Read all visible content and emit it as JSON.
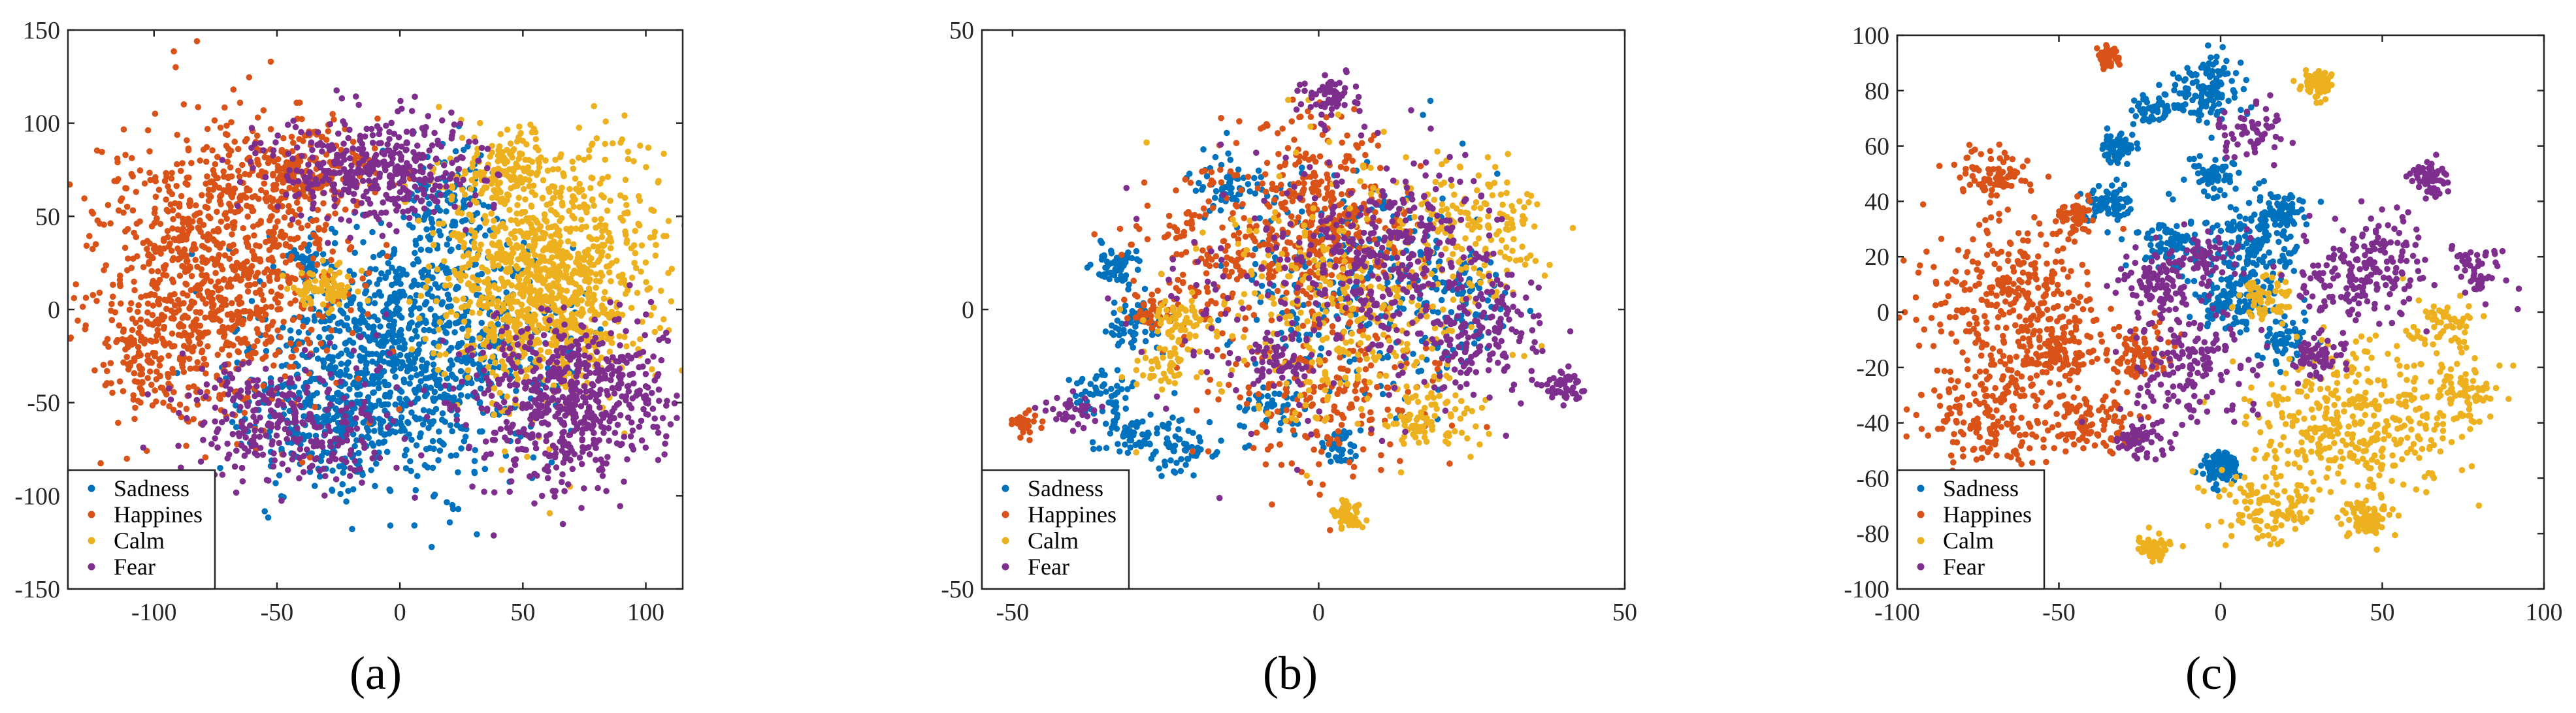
{
  "colors": {
    "Sadness": "#0072BD",
    "Happines": "#D95319",
    "Calm": "#EDB120",
    "Fear": "#7E2F8E",
    "axis": "#262626"
  },
  "chart_data": [
    {
      "type": "scatter",
      "caption": "(a)",
      "xlim": [
        -135,
        115
      ],
      "ylim": [
        -150,
        150
      ],
      "xticks": [
        -100,
        -50,
        0,
        50,
        100
      ],
      "yticks": [
        -150,
        -100,
        -50,
        0,
        50,
        100,
        150
      ],
      "xtick_labels": [
        "-100",
        "-50",
        "0",
        "50",
        "100"
      ],
      "ytick_labels": [
        "-150",
        "-100",
        "-50",
        "0",
        "50",
        "100",
        "150"
      ],
      "legend": {
        "position": "bottom-left",
        "entries": [
          "Sadness",
          "Happines",
          "Calm",
          "Fear"
        ]
      },
      "series": [
        {
          "name": "Sadness",
          "points_estimated": 1400,
          "clusters": [
            {
              "cx": 5,
              "cy": -20,
              "sx": 30,
              "sy": 32,
              "n": 1000
            },
            {
              "cx": -25,
              "cy": -60,
              "sx": 20,
              "sy": 18,
              "n": 250
            },
            {
              "cx": 20,
              "cy": 60,
              "sx": 10,
              "sy": 15,
              "n": 100
            },
            {
              "cx": -38,
              "cy": 25,
              "sx": 4,
              "sy": 4,
              "n": 40
            }
          ]
        },
        {
          "name": "Happines",
          "points_estimated": 1300,
          "clusters": [
            {
              "cx": -75,
              "cy": 20,
              "sx": 25,
              "sy": 38,
              "n": 1000
            },
            {
              "cx": -40,
              "cy": 75,
              "sx": 15,
              "sy": 12,
              "n": 200
            },
            {
              "cx": -100,
              "cy": -30,
              "sx": 10,
              "sy": 15,
              "n": 100
            }
          ]
        },
        {
          "name": "Calm",
          "points_estimated": 1300,
          "clusters": [
            {
              "cx": 60,
              "cy": 15,
              "sx": 22,
              "sy": 32,
              "n": 1100
            },
            {
              "cx": -30,
              "cy": 10,
              "sx": 8,
              "sy": 6,
              "n": 80
            },
            {
              "cx": 40,
              "cy": 75,
              "sx": 10,
              "sy": 10,
              "n": 120
            }
          ]
        },
        {
          "name": "Fear",
          "points_estimated": 1300,
          "clusters": [
            {
              "cx": -10,
              "cy": 75,
              "sx": 20,
              "sy": 15,
              "n": 400
            },
            {
              "cx": 70,
              "cy": -50,
              "sx": 22,
              "sy": 22,
              "n": 600
            },
            {
              "cx": -45,
              "cy": -60,
              "sx": 22,
              "sy": 18,
              "n": 300
            }
          ]
        }
      ]
    },
    {
      "type": "scatter",
      "caption": "(b)",
      "xlim": [
        -55,
        50
      ],
      "ylim": [
        -50,
        50
      ],
      "xticks": [
        -50,
        0,
        50
      ],
      "yticks": [
        -50,
        0,
        50
      ],
      "xtick_labels": [
        "-50",
        "0",
        "50"
      ],
      "ytick_labels": [
        "-50",
        "0",
        "50"
      ],
      "legend": {
        "position": "bottom-left",
        "entries": [
          "Sadness",
          "Happines",
          "Calm",
          "Fear"
        ]
      },
      "series": [
        {
          "name": "Sadness",
          "points_estimated": 900,
          "clusters": [
            {
              "cx": -33,
              "cy": 8,
              "sx": 2,
              "sy": 2,
              "n": 60
            },
            {
              "cx": -30,
              "cy": -3,
              "sx": 2.5,
              "sy": 2.5,
              "n": 60
            },
            {
              "cx": -35,
              "cy": -15,
              "sx": 2.5,
              "sy": 2,
              "n": 50
            },
            {
              "cx": -30,
              "cy": -22,
              "sx": 3,
              "sy": 2.5,
              "n": 70
            },
            {
              "cx": -22,
              "cy": -25,
              "sx": 2.5,
              "sy": 2.5,
              "n": 50
            },
            {
              "cx": -15,
              "cy": 22,
              "sx": 3,
              "sy": 3,
              "n": 60
            },
            {
              "cx": -8,
              "cy": -18,
              "sx": 2.5,
              "sy": 2.5,
              "n": 40
            },
            {
              "cx": 3,
              "cy": -25,
              "sx": 1.5,
              "sy": 1.5,
              "n": 40
            },
            {
              "cx": 5,
              "cy": 5,
              "sx": 10,
              "sy": 10,
              "n": 250
            },
            {
              "cx": 22,
              "cy": 0,
              "sx": 5,
              "sy": 5,
              "n": 100
            }
          ]
        },
        {
          "name": "Happines",
          "points_estimated": 900,
          "clusters": [
            {
              "cx": 0,
              "cy": 15,
              "sx": 7,
              "sy": 9,
              "n": 400
            },
            {
              "cx": -48,
              "cy": -20,
              "sx": 1,
              "sy": 1,
              "n": 30
            },
            {
              "cx": -27,
              "cy": 0,
              "sx": 2,
              "sy": 2,
              "n": 40
            },
            {
              "cx": -18,
              "cy": 10,
              "sx": 6,
              "sy": 8,
              "n": 150
            },
            {
              "cx": 0,
              "cy": -15,
              "sx": 10,
              "sy": 8,
              "n": 200
            }
          ]
        },
        {
          "name": "Calm",
          "points_estimated": 900,
          "clusters": [
            {
              "cx": 5,
              "cy": -37,
              "sx": 1.5,
              "sy": 1.2,
              "n": 50
            },
            {
              "cx": -22,
              "cy": -2,
              "sx": 3,
              "sy": 2.5,
              "n": 60
            },
            {
              "cx": -25,
              "cy": -10,
              "sx": 2.5,
              "sy": 2,
              "n": 40
            },
            {
              "cx": 18,
              "cy": -20,
              "sx": 4,
              "sy": 3,
              "n": 80
            },
            {
              "cx": 25,
              "cy": 15,
              "sx": 6,
              "sy": 6,
              "n": 150
            },
            {
              "cx": 5,
              "cy": 0,
              "sx": 12,
              "sy": 12,
              "n": 400
            }
          ]
        },
        {
          "name": "Fear",
          "points_estimated": 900,
          "clusters": [
            {
              "cx": 2,
              "cy": 38,
              "sx": 2.5,
              "sy": 2,
              "n": 60
            },
            {
              "cx": 40,
              "cy": -14,
              "sx": 1.5,
              "sy": 1.5,
              "n": 50
            },
            {
              "cx": 27,
              "cy": -5,
              "sx": 5,
              "sy": 6,
              "n": 150
            },
            {
              "cx": 12,
              "cy": 10,
              "sx": 8,
              "sy": 8,
              "n": 250
            },
            {
              "cx": -7,
              "cy": -10,
              "sx": 2,
              "sy": 2,
              "n": 40
            },
            {
              "cx": -40,
              "cy": -18,
              "sx": 2,
              "sy": 2,
              "n": 30
            },
            {
              "cx": 0,
              "cy": 0,
              "sx": 15,
              "sy": 12,
              "n": 200
            }
          ]
        }
      ]
    },
    {
      "type": "scatter",
      "caption": "(c)",
      "xlim": [
        -100,
        100
      ],
      "ylim": [
        -100,
        100
      ],
      "xticks": [
        -100,
        -50,
        0,
        50,
        100
      ],
      "yticks": [
        -100,
        -80,
        -60,
        -40,
        -20,
        0,
        20,
        40,
        60,
        80,
        100
      ],
      "xtick_labels": [
        "-100",
        "-50",
        "0",
        "50",
        "100"
      ],
      "ytick_labels": [
        "-100",
        "-80",
        "-60",
        "-40",
        "-20",
        "0",
        "20",
        "40",
        "60",
        "80",
        "100"
      ],
      "legend": {
        "position": "bottom-left",
        "entries": [
          "Sadness",
          "Happines",
          "Calm",
          "Fear"
        ]
      },
      "series": [
        {
          "name": "Sadness",
          "points_estimated": 1100,
          "clusters": [
            {
              "cx": -5,
              "cy": 80,
              "sx": 5,
              "sy": 6,
              "n": 120
            },
            {
              "cx": -20,
              "cy": 73,
              "sx": 4,
              "sy": 3,
              "n": 60
            },
            {
              "cx": -32,
              "cy": 60,
              "sx": 3,
              "sy": 3,
              "n": 60
            },
            {
              "cx": -35,
              "cy": 38,
              "sx": 4,
              "sy": 4,
              "n": 80
            },
            {
              "cx": -3,
              "cy": 50,
              "sx": 4,
              "sy": 4,
              "n": 60
            },
            {
              "cx": 10,
              "cy": 25,
              "sx": 8,
              "sy": 10,
              "n": 200
            },
            {
              "cx": 3,
              "cy": 3,
              "sx": 6,
              "sy": 5,
              "n": 100
            },
            {
              "cx": -15,
              "cy": 25,
              "sx": 6,
              "sy": 6,
              "n": 80
            },
            {
              "cx": 20,
              "cy": -10,
              "sx": 4,
              "sy": 4,
              "n": 60
            },
            {
              "cx": 0,
              "cy": -56,
              "sx": 3,
              "sy": 3,
              "n": 100
            },
            {
              "cx": 20,
              "cy": 35,
              "sx": 3,
              "sy": 3,
              "n": 50
            }
          ]
        },
        {
          "name": "Happines",
          "points_estimated": 1100,
          "clusters": [
            {
              "cx": -35,
              "cy": 92,
              "sx": 2,
              "sy": 2,
              "n": 50
            },
            {
              "cx": -70,
              "cy": 50,
              "sx": 5,
              "sy": 5,
              "n": 80
            },
            {
              "cx": -45,
              "cy": 35,
              "sx": 3,
              "sy": 3,
              "n": 50
            },
            {
              "cx": -65,
              "cy": 5,
              "sx": 15,
              "sy": 15,
              "n": 300
            },
            {
              "cx": -70,
              "cy": -35,
              "sx": 10,
              "sy": 12,
              "n": 200
            },
            {
              "cx": -40,
              "cy": -40,
              "sx": 6,
              "sy": 6,
              "n": 100
            },
            {
              "cx": -25,
              "cy": -15,
              "sx": 5,
              "sy": 5,
              "n": 80
            },
            {
              "cx": -50,
              "cy": -15,
              "sx": 6,
              "sy": 6,
              "n": 100
            }
          ]
        },
        {
          "name": "Calm",
          "points_estimated": 1100,
          "clusters": [
            {
              "cx": 30,
              "cy": 82,
              "sx": 3,
              "sy": 3,
              "n": 60
            },
            {
              "cx": 40,
              "cy": -40,
              "sx": 15,
              "sy": 15,
              "n": 400
            },
            {
              "cx": 45,
              "cy": -75,
              "sx": 4,
              "sy": 3,
              "n": 80
            },
            {
              "cx": 75,
              "cy": -30,
              "sx": 5,
              "sy": 6,
              "n": 80
            },
            {
              "cx": -20,
              "cy": -85,
              "sx": 3,
              "sy": 2,
              "n": 60
            },
            {
              "cx": 15,
              "cy": -70,
              "sx": 8,
              "sy": 6,
              "n": 100
            },
            {
              "cx": 15,
              "cy": 5,
              "sx": 5,
              "sy": 5,
              "n": 60
            },
            {
              "cx": 70,
              "cy": -5,
              "sx": 5,
              "sy": 5,
              "n": 60
            }
          ]
        },
        {
          "name": "Fear",
          "points_estimated": 1100,
          "clusters": [
            {
              "cx": 65,
              "cy": 48,
              "sx": 3,
              "sy": 3,
              "n": 60
            },
            {
              "cx": 45,
              "cy": 15,
              "sx": 10,
              "sy": 10,
              "n": 200
            },
            {
              "cx": 30,
              "cy": -15,
              "sx": 4,
              "sy": 4,
              "n": 60
            },
            {
              "cx": 10,
              "cy": 65,
              "sx": 5,
              "sy": 5,
              "n": 60
            },
            {
              "cx": -20,
              "cy": 10,
              "sx": 6,
              "sy": 6,
              "n": 100
            },
            {
              "cx": -10,
              "cy": -20,
              "sx": 10,
              "sy": 10,
              "n": 150
            },
            {
              "cx": -25,
              "cy": -45,
              "sx": 4,
              "sy": 4,
              "n": 60
            },
            {
              "cx": 80,
              "cy": 15,
              "sx": 4,
              "sy": 5,
              "n": 50
            },
            {
              "cx": -5,
              "cy": 20,
              "sx": 5,
              "sy": 5,
              "n": 60
            }
          ]
        }
      ]
    }
  ]
}
